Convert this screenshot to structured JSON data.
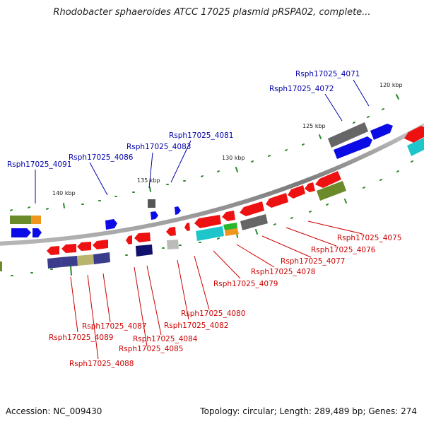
{
  "title": "Rhodobacter sphaeroides ATCC 17025 plasmid pRSPA02, complete...",
  "footer": {
    "accession": "Accession: NC_009430",
    "summary": "Topology: circular; Length: 289,489 bp; Genes: 274"
  },
  "scale_labels": [
    "140 kbp",
    "135 kbp",
    "130 kbp",
    "125 kbp",
    "120 kbp"
  ],
  "colors": {
    "reverse_strand_label": "#cc0000",
    "forward_strand_label": "#0000aa",
    "backbone": "#8c8c8c",
    "tick": "#2a8a2a"
  },
  "genes_forward": [
    "Rsph17025_4091",
    "Rsph17025_4086",
    "Rsph17025_4083",
    "Rsph17025_4081",
    "Rsph17025_4072",
    "Rsph17025_4071"
  ],
  "genes_reverse": [
    "Rsph17025_4075",
    "Rsph17025_4076",
    "Rsph17025_4077",
    "Rsph17025_4078",
    "Rsph17025_4079",
    "Rsph17025_4080",
    "Rsph17025_4082",
    "Rsph17025_4084",
    "Rsph17025_4085",
    "Rsph17025_4087",
    "Rsph17025_4089",
    "Rsph17025_4088"
  ]
}
